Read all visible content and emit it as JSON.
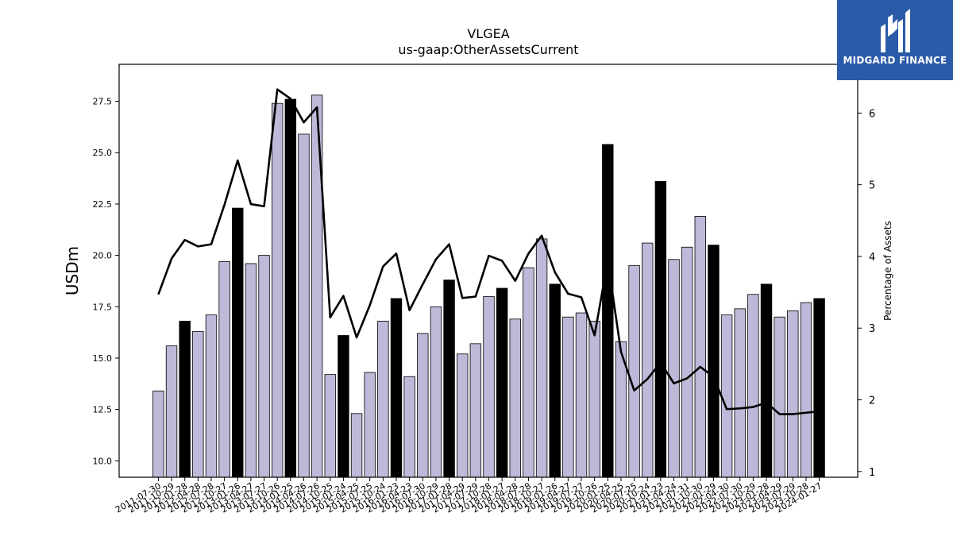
{
  "chart_data": {
    "type": "bar",
    "title": "VLGEA",
    "subtitle": "us-gaap:OtherAssetsCurrent",
    "ylabel": "USDm",
    "y2label": "Percentage of Assets",
    "ylim": [
      9.2,
      29.3
    ],
    "y2lim": [
      0.92,
      6.68
    ],
    "yticks": [
      "10.0",
      "12.5",
      "15.0",
      "17.5",
      "20.0",
      "22.5",
      "25.0",
      "27.5"
    ],
    "y2ticks": [
      "1",
      "2",
      "3",
      "4",
      "5",
      "6"
    ],
    "categories": [
      "2011-07-30",
      "2011-10-29",
      "2012-01-28",
      "2012-04-28",
      "2012-07-28",
      "2012-10-27",
      "2013-01-26",
      "2013-04-27",
      "2013-07-27",
      "2013-10-26",
      "2014-01-25",
      "2014-04-26",
      "2014-07-26",
      "2014-10-25",
      "2015-01-24",
      "2015-04-25",
      "2015-07-25",
      "2015-10-24",
      "2016-01-23",
      "2016-04-23",
      "2016-07-30",
      "2016-10-29",
      "2017-01-28",
      "2017-04-29",
      "2017-07-29",
      "2017-10-28",
      "2018-01-27",
      "2018-04-28",
      "2018-07-28",
      "2018-10-27",
      "2019-01-26",
      "2019-04-27",
      "2019-07-27",
      "2019-10-26",
      "2020-01-25",
      "2020-04-25",
      "2020-07-25",
      "2020-10-24",
      "2021-01-23",
      "2021-04-24",
      "2021-07-31",
      "2021-10-30",
      "2022-01-29",
      "2022-04-30",
      "2022-07-30",
      "2022-10-29",
      "2023-01-28",
      "2023-04-29",
      "2023-07-29",
      "2023-10-28",
      "2024-01-27"
    ],
    "series": [
      {
        "type": "bar",
        "values": [
          13.4,
          15.6,
          16.8,
          16.3,
          17.1,
          19.7,
          22.3,
          19.6,
          20.0,
          27.4,
          27.6,
          25.9,
          27.8,
          14.2,
          16.1,
          12.3,
          14.3,
          16.8,
          17.9,
          14.1,
          16.2,
          17.5,
          18.8,
          15.2,
          15.7,
          18.0,
          18.4,
          16.9,
          19.4,
          20.8,
          18.6,
          17.0,
          17.2,
          16.8,
          25.4,
          15.8,
          19.5,
          20.6,
          23.6,
          19.8,
          20.4,
          21.9,
          20.5,
          17.1,
          17.4,
          18.1,
          18.6,
          17.0,
          17.3,
          17.7,
          17.9
        ],
        "highlight": [
          false,
          false,
          true,
          false,
          false,
          false,
          true,
          false,
          false,
          false,
          true,
          false,
          false,
          false,
          true,
          false,
          false,
          false,
          true,
          false,
          false,
          false,
          true,
          false,
          false,
          false,
          true,
          false,
          false,
          false,
          true,
          false,
          false,
          false,
          true,
          false,
          false,
          false,
          true,
          false,
          false,
          false,
          true,
          false,
          false,
          false,
          true,
          false,
          false,
          false,
          true
        ]
      },
      {
        "type": "line",
        "axis": "right",
        "values": [
          3.47,
          3.97,
          4.23,
          4.14,
          4.17,
          4.72,
          5.34,
          4.73,
          4.7,
          6.33,
          6.2,
          5.87,
          6.08,
          3.15,
          3.45,
          2.87,
          3.32,
          3.86,
          4.04,
          3.25,
          3.61,
          3.96,
          4.17,
          3.42,
          3.44,
          4.01,
          3.94,
          3.66,
          4.04,
          4.29,
          3.78,
          3.48,
          3.43,
          2.9,
          3.94,
          2.67,
          2.13,
          2.29,
          2.52,
          2.23,
          2.3,
          2.46,
          2.32,
          1.87,
          1.88,
          1.9,
          1.96,
          1.8,
          1.8,
          1.82,
          1.84
        ]
      }
    ],
    "colors": {
      "bar": "#bdb9d8",
      "bar_highlight": "#000000",
      "line": "#000000"
    },
    "legend": "none",
    "grid": false
  },
  "logo": {
    "text": "MIDGARD FINANCE",
    "background": "#2b5aa8",
    "icon": "midgard-m-icon"
  }
}
